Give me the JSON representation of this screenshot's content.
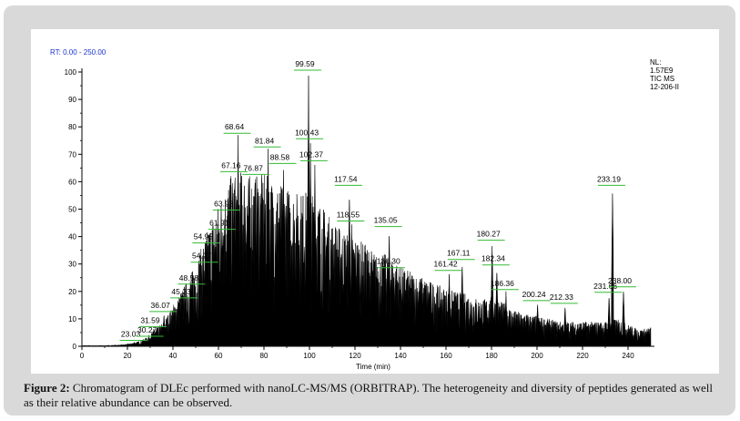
{
  "caption": {
    "label": "Figure 2:",
    "text": " Chromatogram of DLEc performed with nanoLC-MS/MS (ORBITRAP). The heterogeneity and diversity of peptides generated as well as their relative abundance can be observed."
  },
  "chart_data": {
    "type": "line",
    "rt_range_label": "RT: 0.00 - 250.00",
    "xlabel": "Time (min)",
    "ylabel": "",
    "xlim": [
      0,
      250
    ],
    "ylim": [
      0,
      100
    ],
    "x_ticks": [
      0,
      20,
      40,
      60,
      80,
      100,
      120,
      140,
      160,
      180,
      200,
      220,
      240
    ],
    "y_ticks": [
      0,
      10,
      20,
      30,
      40,
      50,
      60,
      70,
      80,
      90,
      100
    ],
    "info_lines": [
      "NL:",
      "1.57E9",
      "TIC MS",
      "12-206-II"
    ],
    "series_color": "#000000",
    "label_line_color": "#33bb33",
    "peaks": [
      {
        "x": 23.03,
        "y": 1.5,
        "label": "23.03"
      },
      {
        "x": 30.27,
        "y": 3,
        "label": "30.27"
      },
      {
        "x": 31.59,
        "y": 6.5,
        "label": "31.59"
      },
      {
        "x": 36.07,
        "y": 12,
        "label": "36.07"
      },
      {
        "x": 45.23,
        "y": 17,
        "label": "45.23"
      },
      {
        "x": 48.58,
        "y": 22,
        "label": "48.58"
      },
      {
        "x": 54.27,
        "y": 30,
        "label": "54.27"
      },
      {
        "x": 54.95,
        "y": 37,
        "label": "54.95"
      },
      {
        "x": 61.91,
        "y": 42,
        "label": "61.91"
      },
      {
        "x": 63.93,
        "y": 49,
        "label": "63.93"
      },
      {
        "x": 67.16,
        "y": 63,
        "label": "67.16"
      },
      {
        "x": 68.64,
        "y": 77,
        "label": "68.64"
      },
      {
        "x": 76.87,
        "y": 62,
        "label": "76.87"
      },
      {
        "x": 81.84,
        "y": 72,
        "label": "81.84"
      },
      {
        "x": 88.58,
        "y": 66,
        "label": "88.58"
      },
      {
        "x": 99.59,
        "y": 100,
        "label": "99.59"
      },
      {
        "x": 100.43,
        "y": 75,
        "label": "100.43"
      },
      {
        "x": 102.37,
        "y": 67,
        "label": "102.37"
      },
      {
        "x": 117.54,
        "y": 58,
        "label": "117.54"
      },
      {
        "x": 118.55,
        "y": 45,
        "label": "118.55"
      },
      {
        "x": 135.05,
        "y": 43,
        "label": "135.05"
      },
      {
        "x": 136.3,
        "y": 28,
        "label": "136.30"
      },
      {
        "x": 161.42,
        "y": 27,
        "label": "161.42"
      },
      {
        "x": 167.11,
        "y": 31,
        "label": "167.11"
      },
      {
        "x": 180.27,
        "y": 38,
        "label": "180.27"
      },
      {
        "x": 182.34,
        "y": 29,
        "label": "182.34"
      },
      {
        "x": 186.36,
        "y": 20,
        "label": "186.36"
      },
      {
        "x": 200.24,
        "y": 16,
        "label": "200.24"
      },
      {
        "x": 212.33,
        "y": 15,
        "label": "212.33"
      },
      {
        "x": 231.66,
        "y": 19,
        "label": "231.66"
      },
      {
        "x": 233.19,
        "y": 58,
        "label": "233.19"
      },
      {
        "x": 238.0,
        "y": 21,
        "label": "238.00"
      }
    ],
    "envelope": [
      [
        0,
        0.3
      ],
      [
        10,
        0.3
      ],
      [
        18,
        0.6
      ],
      [
        24,
        1.5
      ],
      [
        28,
        3
      ],
      [
        32,
        6
      ],
      [
        36,
        9
      ],
      [
        40,
        15
      ],
      [
        45,
        22
      ],
      [
        50,
        30
      ],
      [
        55,
        42
      ],
      [
        60,
        52
      ],
      [
        65,
        62
      ],
      [
        70,
        64
      ],
      [
        75,
        62
      ],
      [
        80,
        63
      ],
      [
        85,
        60
      ],
      [
        90,
        58
      ],
      [
        95,
        56
      ],
      [
        100,
        57
      ],
      [
        105,
        52
      ],
      [
        110,
        46
      ],
      [
        115,
        42
      ],
      [
        120,
        40
      ],
      [
        125,
        37
      ],
      [
        130,
        33
      ],
      [
        135,
        34
      ],
      [
        140,
        29
      ],
      [
        145,
        27
      ],
      [
        150,
        25
      ],
      [
        155,
        23
      ],
      [
        160,
        21
      ],
      [
        165,
        20
      ],
      [
        170,
        19
      ],
      [
        175,
        17
      ],
      [
        180,
        18
      ],
      [
        185,
        16
      ],
      [
        190,
        13
      ],
      [
        195,
        12
      ],
      [
        200,
        11
      ],
      [
        205,
        10
      ],
      [
        210,
        9
      ],
      [
        215,
        9
      ],
      [
        220,
        9
      ],
      [
        225,
        9
      ],
      [
        230,
        9
      ],
      [
        235,
        10
      ],
      [
        240,
        8
      ],
      [
        245,
        6
      ],
      [
        250,
        7
      ]
    ]
  }
}
